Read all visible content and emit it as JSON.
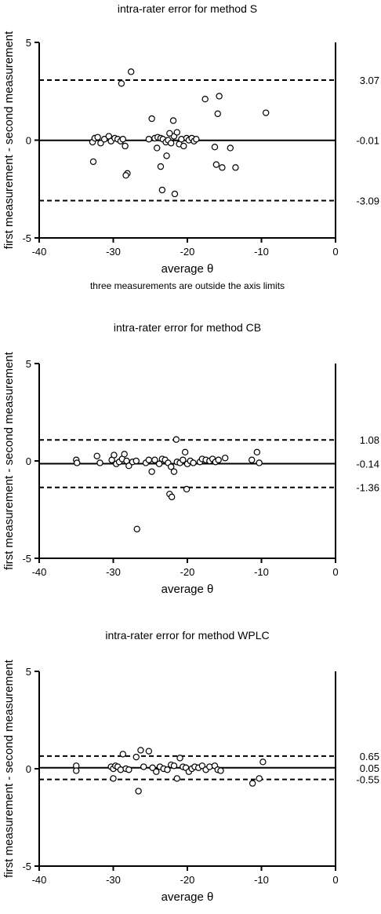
{
  "chart_data": [
    {
      "type": "scatter",
      "title": "intra-rater error for method S",
      "note": "three measurements are outside the axis limits",
      "xlabel": "average θ",
      "ylabel": "first measurement - second measurement",
      "xlim": [
        -40,
        0
      ],
      "ylim": [
        -5,
        5
      ],
      "xticks": [
        -40,
        -30,
        -20,
        -10,
        0
      ],
      "yticks": [
        -5,
        0,
        5
      ],
      "lines": {
        "mean": -0.01,
        "upper": 3.07,
        "lower": -3.09
      },
      "line_labels": [
        "3.07",
        "-0.01",
        "-3.09"
      ],
      "points": [
        [
          -32.8,
          -0.1
        ],
        [
          -32.5,
          0.1
        ],
        [
          -32.1,
          0.15
        ],
        [
          -31.7,
          -0.15
        ],
        [
          -31.2,
          0.05
        ],
        [
          -30.6,
          0.2
        ],
        [
          -30.3,
          -0.05
        ],
        [
          -29.8,
          0.1
        ],
        [
          -29.4,
          0.05
        ],
        [
          -29.0,
          -0.05
        ],
        [
          -28.7,
          0.05
        ],
        [
          -28.4,
          -0.3
        ],
        [
          -28.1,
          -1.7
        ],
        [
          -28.3,
          -1.8
        ],
        [
          -32.7,
          -1.1
        ],
        [
          -28.9,
          2.9
        ],
        [
          -27.6,
          3.5
        ],
        [
          -25.2,
          0.05
        ],
        [
          -24.8,
          1.1
        ],
        [
          -24.4,
          0.1
        ],
        [
          -24.0,
          0.15
        ],
        [
          -23.6,
          0.1
        ],
        [
          -23.3,
          0.05
        ],
        [
          -22.9,
          -0.1
        ],
        [
          -22.6,
          0.0
        ],
        [
          -22.2,
          -0.15
        ],
        [
          -21.8,
          0.2
        ],
        [
          -21.4,
          0.4
        ],
        [
          -21.1,
          -0.2
        ],
        [
          -20.8,
          0.05
        ],
        [
          -20.5,
          -0.3
        ],
        [
          -20.1,
          0.1
        ],
        [
          -19.8,
          0.0
        ],
        [
          -19.4,
          0.1
        ],
        [
          -19.1,
          -0.05
        ],
        [
          -18.8,
          0.05
        ],
        [
          -22.8,
          -0.8
        ],
        [
          -23.6,
          -1.35
        ],
        [
          -24.1,
          -0.4
        ],
        [
          -23.4,
          -2.55
        ],
        [
          -21.7,
          -2.75
        ],
        [
          -21.9,
          1.0
        ],
        [
          -22.4,
          0.35
        ],
        [
          -17.6,
          2.1
        ],
        [
          -15.7,
          2.25
        ],
        [
          -15.9,
          1.35
        ],
        [
          -16.3,
          -0.35
        ],
        [
          -16.1,
          -1.25
        ],
        [
          -15.3,
          -1.4
        ],
        [
          -14.2,
          -0.4
        ],
        [
          -13.5,
          -1.4
        ],
        [
          -9.4,
          1.4
        ]
      ]
    },
    {
      "type": "scatter",
      "title": "intra-rater error for method CB",
      "xlabel": "average θ",
      "ylabel": "first measurement - second measurement",
      "xlim": [
        -40,
        0
      ],
      "ylim": [
        -5,
        5
      ],
      "xticks": [
        -40,
        -30,
        -20,
        -10,
        0
      ],
      "yticks": [
        -5,
        0,
        5
      ],
      "lines": {
        "mean": -0.14,
        "upper": 1.08,
        "lower": -1.36
      },
      "line_labels": [
        "1.08",
        "-0.14",
        "-1.36"
      ],
      "points": [
        [
          -35.0,
          0.05
        ],
        [
          -34.9,
          -0.1
        ],
        [
          -32.2,
          0.25
        ],
        [
          -31.8,
          -0.1
        ],
        [
          -30.2,
          0.05
        ],
        [
          -29.9,
          0.3
        ],
        [
          -29.6,
          -0.15
        ],
        [
          -29.2,
          -0.05
        ],
        [
          -28.8,
          0.1
        ],
        [
          -28.5,
          0.35
        ],
        [
          -28.2,
          0.0
        ],
        [
          -27.9,
          -0.25
        ],
        [
          -27.4,
          -0.05
        ],
        [
          -26.9,
          0.0
        ],
        [
          -25.6,
          -0.1
        ],
        [
          -25.2,
          0.05
        ],
        [
          -24.8,
          -0.55
        ],
        [
          -24.4,
          0.05
        ],
        [
          -23.8,
          -0.15
        ],
        [
          -23.4,
          0.1
        ],
        [
          -23.0,
          0.05
        ],
        [
          -22.6,
          -0.1
        ],
        [
          -22.2,
          -0.3
        ],
        [
          -21.8,
          -0.55
        ],
        [
          -21.4,
          -0.05
        ],
        [
          -21.0,
          -0.1
        ],
        [
          -20.6,
          0.05
        ],
        [
          -20.3,
          0.45
        ],
        [
          -20.0,
          -0.15
        ],
        [
          -19.6,
          0.0
        ],
        [
          -19.2,
          -0.1
        ],
        [
          -21.5,
          1.1
        ],
        [
          -22.4,
          -1.7
        ],
        [
          -22.1,
          -1.85
        ],
        [
          -20.1,
          -1.45
        ],
        [
          -26.8,
          -3.5
        ],
        [
          -18.3,
          -0.05
        ],
        [
          -18.0,
          0.1
        ],
        [
          -17.5,
          0.05
        ],
        [
          -17.0,
          0.0
        ],
        [
          -16.6,
          0.1
        ],
        [
          -16.2,
          -0.05
        ],
        [
          -15.8,
          0.05
        ],
        [
          -14.9,
          0.15
        ],
        [
          -11.3,
          0.05
        ],
        [
          -10.6,
          0.45
        ],
        [
          -10.3,
          -0.1
        ]
      ]
    },
    {
      "type": "scatter",
      "title": "intra-rater error for method WPLC",
      "xlabel": "average θ",
      "ylabel": "first measurement - second measurement",
      "xlim": [
        -40,
        0
      ],
      "ylim": [
        -5,
        5
      ],
      "xticks": [
        -40,
        -30,
        -20,
        -10,
        0
      ],
      "yticks": [
        -5,
        0,
        5
      ],
      "lines": {
        "mean": 0.05,
        "upper": 0.65,
        "lower": -0.55
      },
      "line_labels": [
        "0.65",
        "0.05",
        "-0.55"
      ],
      "points": [
        [
          -35.0,
          0.15
        ],
        [
          -35.0,
          -0.1
        ],
        [
          -30.3,
          0.1
        ],
        [
          -30.0,
          0.0
        ],
        [
          -29.7,
          0.15
        ],
        [
          -29.4,
          0.1
        ],
        [
          -29.0,
          -0.05
        ],
        [
          -28.7,
          0.75
        ],
        [
          -28.3,
          0.0
        ],
        [
          -27.9,
          -0.05
        ],
        [
          -30.0,
          -0.5
        ],
        [
          -26.9,
          0.6
        ],
        [
          -26.3,
          0.95
        ],
        [
          -25.9,
          0.1
        ],
        [
          -25.2,
          0.9
        ],
        [
          -24.7,
          0.05
        ],
        [
          -24.2,
          -0.15
        ],
        [
          -23.7,
          0.1
        ],
        [
          -23.2,
          0.0
        ],
        [
          -22.7,
          -0.05
        ],
        [
          -22.2,
          0.2
        ],
        [
          -21.8,
          0.15
        ],
        [
          -21.4,
          -0.5
        ],
        [
          -21.0,
          0.55
        ],
        [
          -20.6,
          0.1
        ],
        [
          -20.2,
          0.05
        ],
        [
          -19.8,
          -0.15
        ],
        [
          -19.4,
          0.0
        ],
        [
          -26.6,
          -1.15
        ],
        [
          -19.0,
          0.1
        ],
        [
          -18.5,
          0.05
        ],
        [
          -18.0,
          0.15
        ],
        [
          -17.5,
          -0.05
        ],
        [
          -17.0,
          0.1
        ],
        [
          -16.3,
          0.15
        ],
        [
          -15.9,
          -0.05
        ],
        [
          -15.5,
          -0.1
        ],
        [
          -11.2,
          -0.75
        ],
        [
          -10.3,
          -0.5
        ],
        [
          -9.8,
          0.35
        ]
      ]
    }
  ]
}
